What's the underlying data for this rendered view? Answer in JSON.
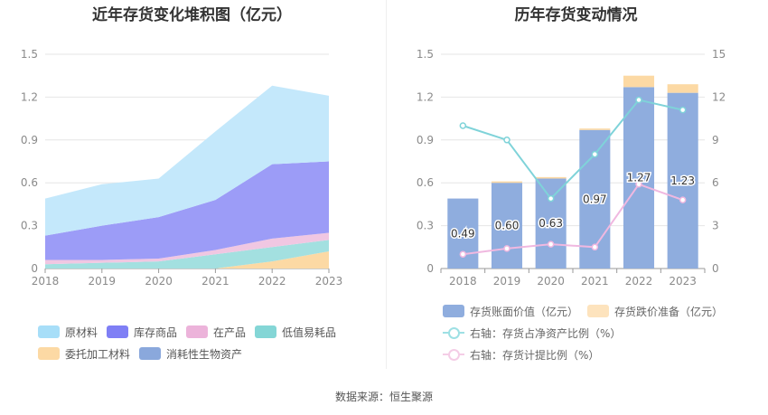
{
  "left_chart": {
    "title": "近年存货变化堆积图（亿元）",
    "chart_data": {
      "type": "area",
      "stacked": true,
      "title": "近年存货变化堆积图（亿元）",
      "categories": [
        "2018",
        "2019",
        "2020",
        "2021",
        "2022",
        "2023"
      ],
      "ylim": [
        0,
        1.5
      ],
      "yticks": [
        "0",
        "0.3",
        "0.6",
        "0.9",
        "1.2",
        "1.5"
      ],
      "grid": true,
      "legend_position": "bottom",
      "series": [
        {
          "name": "委托加工材料",
          "color": "#fcd9a4",
          "values": [
            0.0,
            0.0,
            0.0,
            0.0,
            0.05,
            0.12
          ]
        },
        {
          "name": "消耗性生物资产",
          "color": "#8aa8dc",
          "values": [
            0.0,
            0.0,
            0.0,
            0.0,
            0.0,
            0.0
          ]
        },
        {
          "name": "低值易耗品",
          "color": "#a3e0e0",
          "values": [
            0.03,
            0.04,
            0.05,
            0.1,
            0.1,
            0.08
          ]
        },
        {
          "name": "在产品",
          "color": "#f0c7e2",
          "values": [
            0.03,
            0.02,
            0.02,
            0.03,
            0.06,
            0.05
          ]
        },
        {
          "name": "库存商品",
          "color": "#9c9cf7",
          "values": [
            0.17,
            0.24,
            0.29,
            0.35,
            0.52,
            0.5
          ]
        },
        {
          "name": "原材料",
          "color": "#c4e8fb",
          "values": [
            0.26,
            0.29,
            0.27,
            0.48,
            0.55,
            0.46
          ]
        }
      ]
    },
    "legend": [
      {
        "label": "原材料",
        "color": "#a7def8"
      },
      {
        "label": "库存商品",
        "color": "#7f7ff5"
      },
      {
        "label": "在产品",
        "color": "#ecb3da"
      },
      {
        "label": "低值易耗品",
        "color": "#84d6d6"
      },
      {
        "label": "委托加工材料",
        "color": "#fcd9a4"
      },
      {
        "label": "消耗性生物资产",
        "color": "#8aa8dc"
      }
    ]
  },
  "right_chart": {
    "title": "历年存货变动情况",
    "chart_data": {
      "type": "bar",
      "title": "历年存货变动情况",
      "categories": [
        "2018",
        "2019",
        "2020",
        "2021",
        "2022",
        "2023"
      ],
      "ylim": [
        0,
        1.5
      ],
      "y2lim": [
        0,
        15
      ],
      "yticks": [
        "0",
        "0.3",
        "0.6",
        "0.9",
        "1.2",
        "1.5"
      ],
      "y2ticks": [
        "0",
        "3",
        "6",
        "9",
        "12",
        "15"
      ],
      "grid": true,
      "legend_position": "bottom",
      "series": [
        {
          "name": "存货账面价值（亿元）",
          "type": "bar",
          "stack": "inv",
          "color": "#8fadde",
          "values": [
            0.49,
            0.6,
            0.63,
            0.97,
            1.27,
            1.23
          ],
          "labels": [
            "0.49",
            "0.60",
            "0.63",
            "0.97",
            "1.27",
            "1.23"
          ]
        },
        {
          "name": "存货跌价准备（亿元）",
          "type": "bar",
          "stack": "inv",
          "color": "#fcd9a4",
          "values": [
            0.0,
            0.01,
            0.01,
            0.01,
            0.08,
            0.06
          ]
        },
        {
          "name": "右轴：存货占净资产比例（%）",
          "type": "line",
          "axis": "right",
          "color": "#7fd3d9",
          "values": [
            10.0,
            9.0,
            4.9,
            8.0,
            11.8,
            11.1
          ]
        },
        {
          "name": "右轴：存货计提比例（%）",
          "type": "line",
          "axis": "right",
          "color": "#f0b8e0",
          "values": [
            1.0,
            1.4,
            1.7,
            1.5,
            5.9,
            4.8
          ]
        }
      ]
    },
    "legend": [
      {
        "label": "存货账面价值（亿元）",
        "color": "#8fadde",
        "kind": "box"
      },
      {
        "label": "存货跌价准备（亿元）",
        "color": "#fde3bd",
        "kind": "box"
      },
      {
        "label": "右轴：存货占净资产比例（%）",
        "color": "#9ee0e4",
        "kind": "line"
      },
      {
        "label": "右轴：存货计提比例（%）",
        "color": "#f4cde6",
        "kind": "line"
      }
    ]
  },
  "source": "数据来源：恒生聚源"
}
